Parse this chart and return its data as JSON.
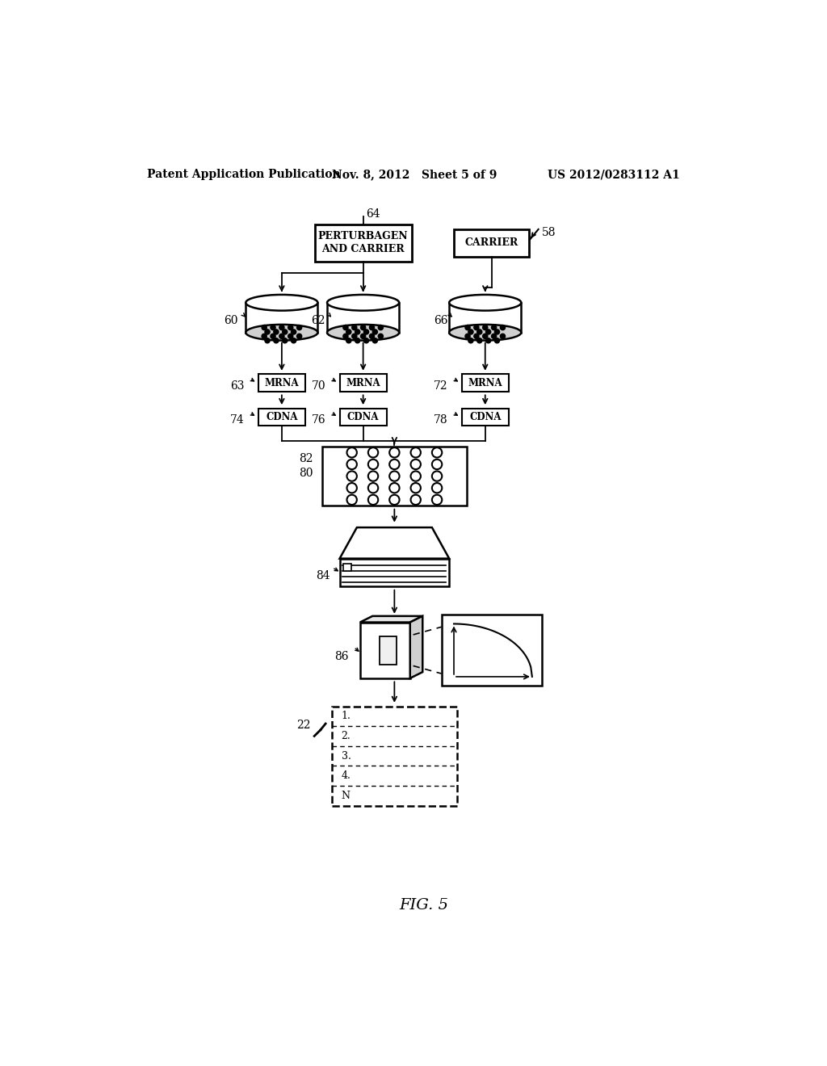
{
  "bg_color": "#ffffff",
  "header_left": "Patent Application Publication",
  "header_mid": "Nov. 8, 2012   Sheet 5 of 9",
  "header_right": "US 2012/0283112 A1",
  "fig_label": "FIG. 5",
  "perturbagen_label": "PERTURBAGEN\nAND CARRIER",
  "carrier_label": "CARRIER",
  "mrna_label": "MRNA",
  "cdna_label": "CDNA",
  "ref_nums": {
    "n64": "64",
    "n58": "58",
    "n60": "60",
    "n62": "62",
    "n66": "66",
    "n63": "63",
    "n70": "70",
    "n72": "72",
    "n74": "74",
    "n76": "76",
    "n78": "78",
    "n80": "80",
    "n82": "82",
    "n84": "84",
    "n86": "86",
    "n22": "22"
  },
  "db_rows": [
    "1.",
    "2.",
    "3.",
    "4.",
    "N"
  ]
}
